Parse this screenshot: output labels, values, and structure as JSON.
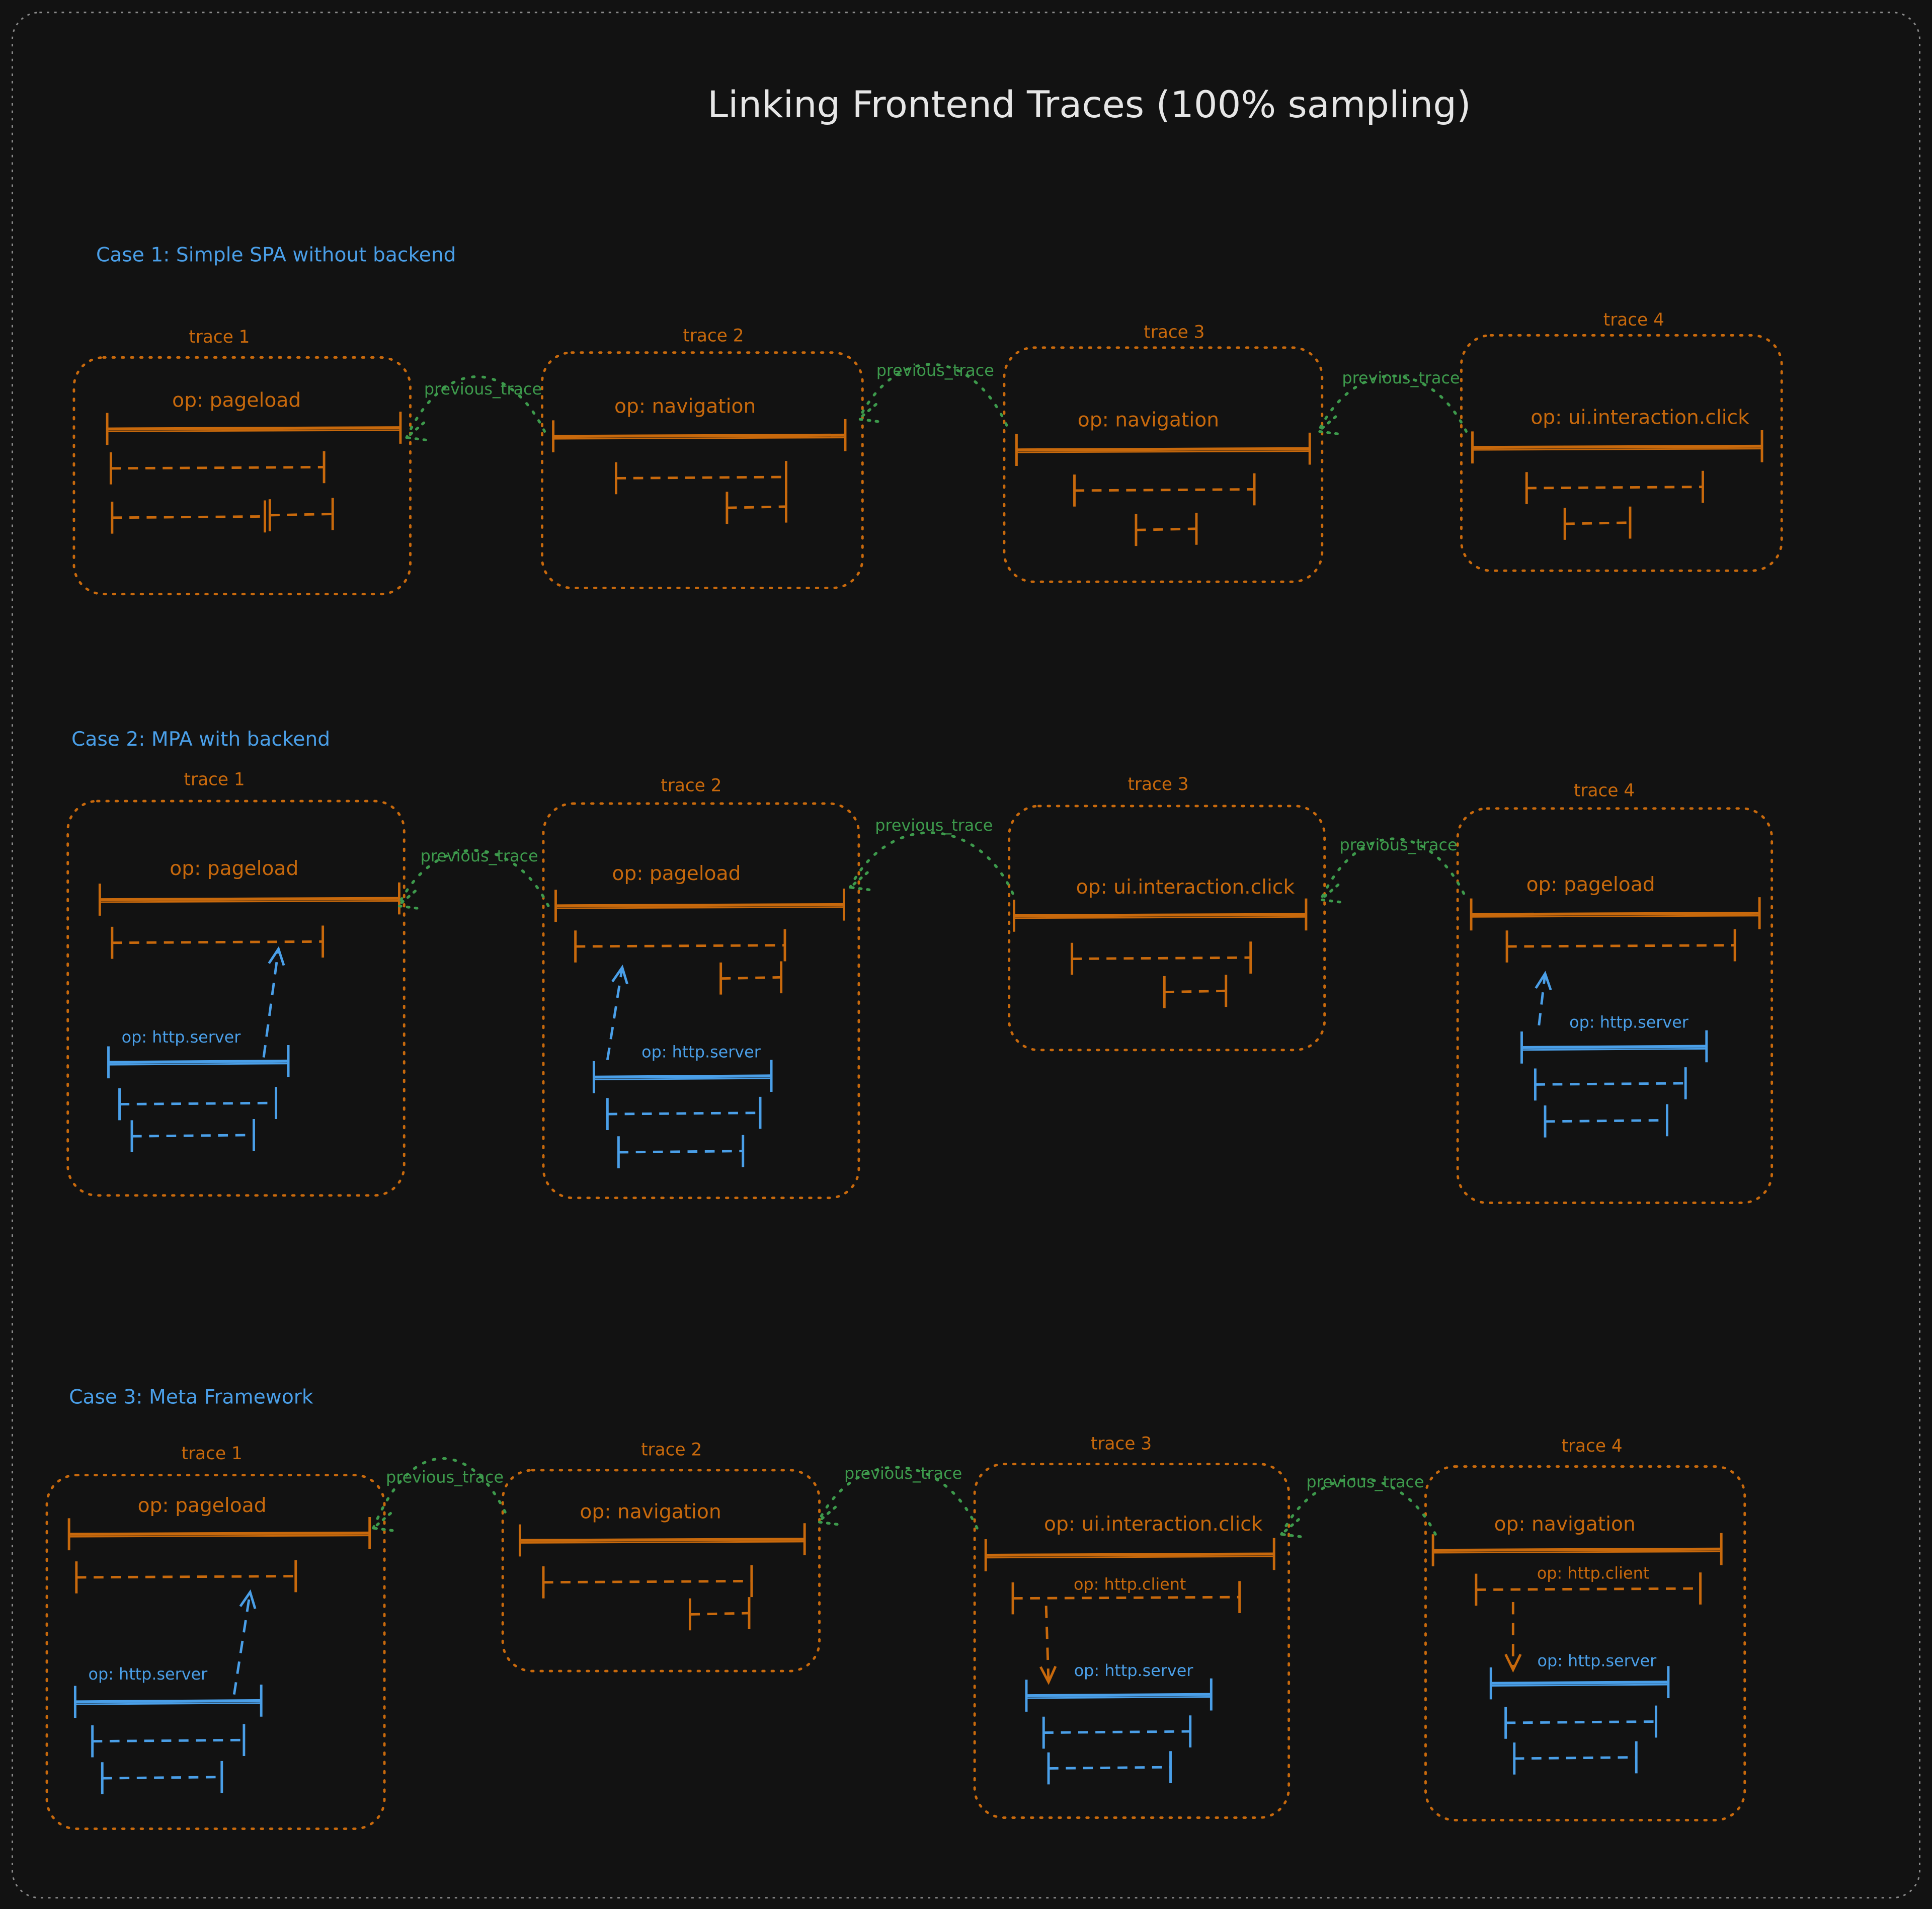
{
  "title": "Linking Frontend Traces (100% sampling)",
  "colors": {
    "background": "#121212",
    "frontend": "#c8690c",
    "backend": "#4a9fe8",
    "link": "#3d9a4c",
    "heading": "#4a9fe8",
    "title": "#e6e6e6",
    "border": "#8a8a8a"
  },
  "cases": [
    {
      "title": "Case 1: Simple SPA without backend",
      "traces": [
        {
          "label": "trace 1",
          "op": "op: pageload"
        },
        {
          "label": "trace 2",
          "op": "op: navigation"
        },
        {
          "label": "trace 3",
          "op": "op: navigation"
        },
        {
          "label": "trace 4",
          "op": "op: ui.interaction.click"
        }
      ],
      "links": [
        "previous_trace",
        "previous_trace",
        "previous_trace"
      ]
    },
    {
      "title": "Case 2: MPA with backend",
      "traces": [
        {
          "label": "trace 1",
          "op": "op: pageload",
          "server_op": "op: http.server"
        },
        {
          "label": "trace 2",
          "op": "op: pageload",
          "server_op": "op: http.server"
        },
        {
          "label": "trace 3",
          "op": "op: ui.interaction.click"
        },
        {
          "label": "trace 4",
          "op": "op: pageload",
          "server_op": "op: http.server"
        }
      ],
      "links": [
        "previous_trace",
        "previous_trace",
        "previous_trace"
      ]
    },
    {
      "title": "Case 3: Meta Framework",
      "traces": [
        {
          "label": "trace 1",
          "op": "op: pageload",
          "server_op": "op: http.server"
        },
        {
          "label": "trace 2",
          "op": "op: navigation"
        },
        {
          "label": "trace 3",
          "op": "op: ui.interaction.click",
          "client_op": "op: http.client",
          "server_op": "op: http.server"
        },
        {
          "label": "trace 4",
          "op": "op: navigation",
          "client_op": "op: http.client",
          "server_op": "op: http.server"
        }
      ],
      "links": [
        "previous_trace",
        "previous_trace",
        "previous_trace"
      ]
    }
  ]
}
